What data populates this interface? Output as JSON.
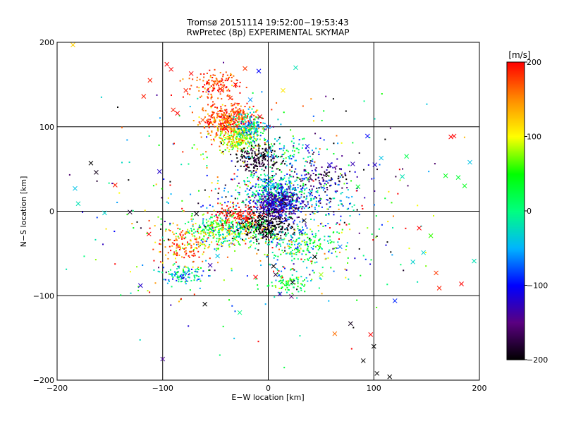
{
  "chart_data": {
    "type": "scatter",
    "title": "Tromsø 20151114 19:52:00−19:53:43",
    "subtitle": "RwPretec (8p) EXPERIMENTAL SKYMAP",
    "xlabel": "E−W location [km]",
    "ylabel": "N−S location [km]",
    "xlim": [
      -200,
      200
    ],
    "ylim": [
      -200,
      200
    ],
    "xticks": [
      -200,
      -100,
      0,
      100,
      200
    ],
    "yticks": [
      -200,
      -100,
      0,
      100,
      200
    ],
    "xtick_labels": [
      "−200",
      "−100",
      "0",
      "100",
      "200"
    ],
    "ytick_labels": [
      "−200",
      "−100",
      "0",
      "100",
      "200"
    ],
    "grid": true,
    "colorbar": {
      "label": "[m/s]",
      "min": -200,
      "max": 200,
      "ticks": [
        200,
        100,
        0,
        -100,
        -200
      ],
      "tick_labels": [
        "200",
        "100",
        "0",
        "−100",
        "−200"
      ],
      "palette": [
        "#000000",
        "#5a0080",
        "#0000ff",
        "#00b4ff",
        "#00ff80",
        "#00ff00",
        "#ffff00",
        "#ff8c00",
        "#ff0000"
      ]
    },
    "series": [
      {
        "marker": "x",
        "points": [
          [
            -185,
            197,
            120
          ],
          [
            -183,
            27,
            -40
          ],
          [
            -180,
            9,
            -20
          ],
          [
            -168,
            57,
            -200
          ],
          [
            -163,
            46,
            -190
          ],
          [
            -155,
            -2,
            -30
          ],
          [
            -145,
            31,
            190
          ],
          [
            -131,
            -1,
            -180
          ],
          [
            -121,
            -88,
            -120
          ],
          [
            -118,
            136,
            190
          ],
          [
            -112,
            155,
            190
          ],
          [
            -113,
            -27,
            200
          ],
          [
            -103,
            47,
            -120
          ],
          [
            -100,
            -175,
            -140
          ],
          [
            -96,
            174,
            200
          ],
          [
            -92,
            168,
            200
          ],
          [
            -90,
            120,
            190
          ],
          [
            -86,
            116,
            200
          ],
          [
            -78,
            143,
            190
          ],
          [
            -73,
            163,
            200
          ],
          [
            -68,
            -3,
            -200
          ],
          [
            -62,
            108,
            170
          ],
          [
            -60,
            -110,
            -200
          ],
          [
            -55,
            -64,
            -130
          ],
          [
            -48,
            -53,
            -40
          ],
          [
            -44,
            143,
            200
          ],
          [
            -42,
            112,
            190
          ],
          [
            -40,
            98,
            200
          ],
          [
            -36,
            134,
            190
          ],
          [
            -33,
            78,
            100
          ],
          [
            -31,
            150,
            200
          ],
          [
            -27,
            -120,
            0
          ],
          [
            -22,
            169,
            180
          ],
          [
            -17,
            132,
            -60
          ],
          [
            -12,
            -78,
            200
          ],
          [
            -9,
            166,
            -100
          ],
          [
            -8,
            112,
            200
          ],
          [
            -4,
            64,
            -200
          ],
          [
            0,
            100,
            -60
          ],
          [
            1,
            35,
            -80
          ],
          [
            2,
            -24,
            -200
          ],
          [
            5,
            -65,
            -200
          ],
          [
            7,
            -75,
            -180
          ],
          [
            11,
            -98,
            -120
          ],
          [
            14,
            143,
            110
          ],
          [
            22,
            -101,
            -150
          ],
          [
            23,
            -84,
            -190
          ],
          [
            26,
            170,
            -20
          ],
          [
            31,
            -24,
            -100
          ],
          [
            34,
            -11,
            -200
          ],
          [
            37,
            77,
            -110
          ],
          [
            44,
            -54,
            -200
          ],
          [
            50,
            -75,
            80
          ],
          [
            55,
            44,
            -200
          ],
          [
            58,
            55,
            -120
          ],
          [
            63,
            -145,
            160
          ],
          [
            68,
            -42,
            -70
          ],
          [
            78,
            -133,
            -190
          ],
          [
            80,
            56,
            -130
          ],
          [
            85,
            29,
            30
          ],
          [
            90,
            -177,
            -200
          ],
          [
            94,
            89,
            -100
          ],
          [
            97,
            -146,
            200
          ],
          [
            100,
            -160,
            -200
          ],
          [
            101,
            55,
            -120
          ],
          [
            103,
            -192,
            -200
          ],
          [
            107,
            63,
            -40
          ],
          [
            115,
            -196,
            -200
          ],
          [
            120,
            -106,
            -90
          ],
          [
            127,
            41,
            -20
          ],
          [
            131,
            65,
            20
          ],
          [
            137,
            -60,
            -30
          ],
          [
            143,
            -20,
            200
          ],
          [
            147,
            -49,
            -30
          ],
          [
            154,
            -29,
            60
          ],
          [
            159,
            -73,
            180
          ],
          [
            162,
            -91,
            190
          ],
          [
            168,
            42,
            40
          ],
          [
            173,
            88,
            200
          ],
          [
            176,
            89,
            200
          ],
          [
            180,
            40,
            30
          ],
          [
            183,
            -86,
            200
          ],
          [
            186,
            30,
            40
          ],
          [
            191,
            58,
            -40
          ],
          [
            195,
            -59,
            -20
          ]
        ]
      },
      {
        "marker": "dot",
        "clusters": [
          {
            "cx": -38,
            "cy": 108,
            "rx": 22,
            "ry": 16,
            "n": 420,
            "v": 170,
            "vs": 35
          },
          {
            "cx": -52,
            "cy": 150,
            "rx": 20,
            "ry": 14,
            "n": 140,
            "v": 180,
            "vs": 25
          },
          {
            "cx": -28,
            "cy": 85,
            "rx": 16,
            "ry": 12,
            "n": 220,
            "v": 90,
            "vs": 40
          },
          {
            "cx": -18,
            "cy": 100,
            "rx": 14,
            "ry": 14,
            "n": 160,
            "v": -30,
            "vs": 40
          },
          {
            "cx": -10,
            "cy": 62,
            "rx": 18,
            "ry": 12,
            "n": 180,
            "v": -190,
            "vs": 20
          },
          {
            "cx": 5,
            "cy": 25,
            "rx": 28,
            "ry": 18,
            "n": 360,
            "v": -30,
            "vs": 45
          },
          {
            "cx": 8,
            "cy": 8,
            "rx": 18,
            "ry": 14,
            "n": 460,
            "v": -130,
            "vs": 30
          },
          {
            "cx": -5,
            "cy": -18,
            "rx": 22,
            "ry": 14,
            "n": 320,
            "v": -200,
            "vs": 15
          },
          {
            "cx": -40,
            "cy": -22,
            "rx": 35,
            "ry": 16,
            "n": 400,
            "v": 40,
            "vs": 60
          },
          {
            "cx": -80,
            "cy": -40,
            "rx": 22,
            "ry": 18,
            "n": 140,
            "v": 160,
            "vs": 45
          },
          {
            "cx": -80,
            "cy": -75,
            "rx": 16,
            "ry": 10,
            "n": 110,
            "v": -30,
            "vs": 50
          },
          {
            "cx": -28,
            "cy": -5,
            "rx": 18,
            "ry": 10,
            "n": 110,
            "v": 195,
            "vs": 10
          },
          {
            "cx": 30,
            "cy": -40,
            "rx": 28,
            "ry": 22,
            "n": 220,
            "v": 10,
            "vs": 60
          },
          {
            "cx": 50,
            "cy": 40,
            "rx": 32,
            "ry": 18,
            "n": 130,
            "v": -160,
            "vs": 35
          },
          {
            "cx": 20,
            "cy": -85,
            "rx": 18,
            "ry": 10,
            "n": 90,
            "v": 20,
            "vs": 40
          },
          {
            "cx": 45,
            "cy": 10,
            "rx": 30,
            "ry": 20,
            "n": 120,
            "v": -80,
            "vs": 50
          },
          {
            "cx": 20,
            "cy": 70,
            "rx": 25,
            "ry": 15,
            "n": 90,
            "v": -20,
            "vs": 50
          },
          {
            "cx": 0,
            "cy": 0,
            "rx": 125,
            "ry": 105,
            "n": 520,
            "v": 0,
            "vs": 140
          }
        ]
      }
    ]
  }
}
